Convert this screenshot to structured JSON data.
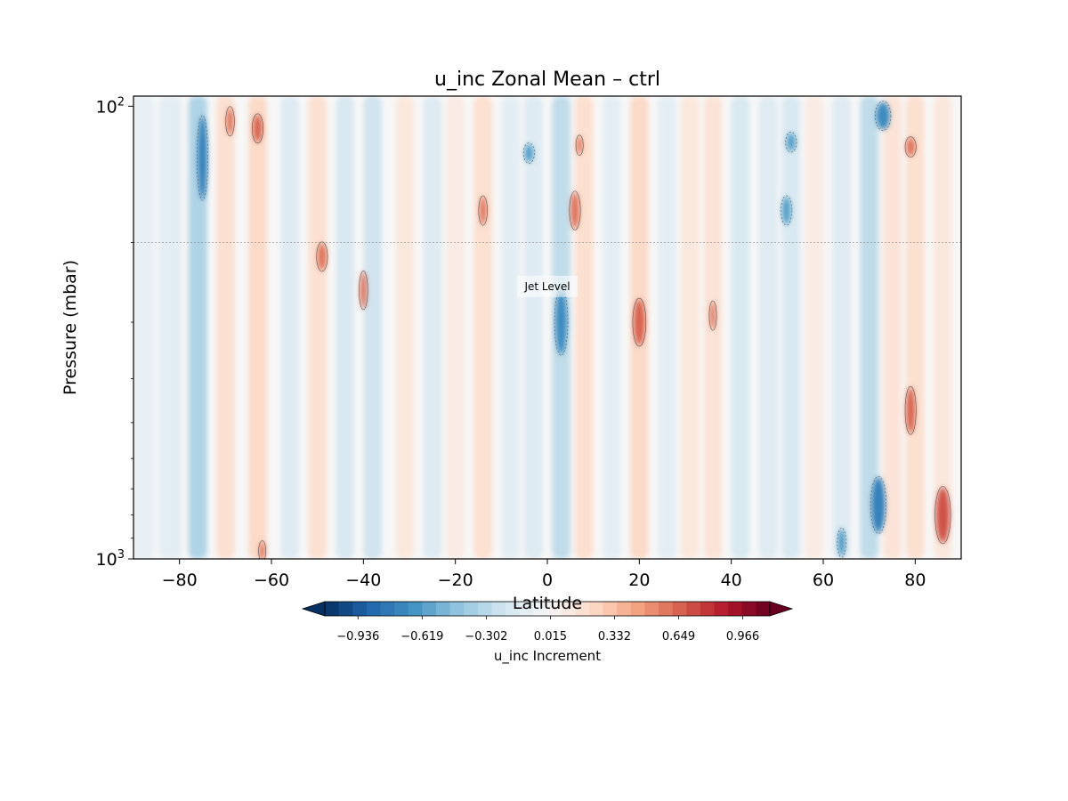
{
  "chart_data": {
    "type": "heatmap",
    "title": "u_inc Zonal Mean – ctrl",
    "xlabel": "Latitude",
    "ylabel": "Pressure (mbar)",
    "xlim": [
      -90,
      90
    ],
    "ylim": [
      1000,
      95
    ],
    "y_scale": "log",
    "grid": false,
    "x_ticks": [
      -80,
      -60,
      -40,
      -20,
      0,
      20,
      40,
      60,
      80
    ],
    "x_tick_labels": [
      "−80",
      "−60",
      "−40",
      "−20",
      "0",
      "20",
      "40",
      "60",
      "80"
    ],
    "y_tick_labels": [
      {
        "base": "10",
        "exp": "2",
        "value": 100
      },
      {
        "base": "10",
        "exp": "3",
        "value": 1000
      }
    ],
    "y_minor_ticks": [
      200,
      300,
      400,
      500,
      600,
      700,
      800,
      900
    ],
    "data_bottom_pressure": 1000,
    "data_top_pressure": 95,
    "annotation": {
      "text": "Jet Level",
      "x": 0,
      "pressure": 250
    },
    "reference_line": {
      "pressure": 200,
      "style": "dotted"
    },
    "colorbar": {
      "label": "u_inc Increment",
      "colormap": "RdBu_r",
      "vmin": -1.1,
      "vmax": 1.1,
      "extend": "both",
      "levels": 32,
      "tick_values": [
        -0.936,
        -0.619,
        -0.302,
        0.015,
        0.332,
        0.649,
        0.966
      ],
      "tick_labels": [
        "−0.936",
        "−0.619",
        "−0.302",
        "0.015",
        "0.332",
        "0.649",
        "0.966"
      ]
    },
    "bands": [
      {
        "lat": -88,
        "lat_width": 5,
        "value": -0.15
      },
      {
        "lat": -82,
        "lat_width": 5,
        "value": -0.2
      },
      {
        "lat": -76,
        "lat_width": 4,
        "value": -0.55
      },
      {
        "lat": -70,
        "lat_width": 4,
        "value": 0.3
      },
      {
        "lat": -63,
        "lat_width": 4,
        "value": 0.35
      },
      {
        "lat": -56,
        "lat_width": 4,
        "value": -0.25
      },
      {
        "lat": -50,
        "lat_width": 4,
        "value": 0.3
      },
      {
        "lat": -44,
        "lat_width": 4,
        "value": -0.3
      },
      {
        "lat": -38,
        "lat_width": 4,
        "value": -0.35
      },
      {
        "lat": -31,
        "lat_width": 4,
        "value": 0.2
      },
      {
        "lat": -25,
        "lat_width": 4,
        "value": -0.25
      },
      {
        "lat": -20,
        "lat_width": 4,
        "value": 0.15
      },
      {
        "lat": -14,
        "lat_width": 4,
        "value": 0.3
      },
      {
        "lat": -8,
        "lat_width": 4,
        "value": -0.2
      },
      {
        "lat": -3,
        "lat_width": 4,
        "value": -0.25
      },
      {
        "lat": 3,
        "lat_width": 4,
        "value": -0.45
      },
      {
        "lat": 8,
        "lat_width": 4,
        "value": 0.3
      },
      {
        "lat": 14,
        "lat_width": 4,
        "value": -0.2
      },
      {
        "lat": 20,
        "lat_width": 4,
        "value": 0.35
      },
      {
        "lat": 26,
        "lat_width": 4,
        "value": -0.2
      },
      {
        "lat": 31,
        "lat_width": 4,
        "value": 0.2
      },
      {
        "lat": 36,
        "lat_width": 4,
        "value": 0.25
      },
      {
        "lat": 42,
        "lat_width": 4,
        "value": -0.3
      },
      {
        "lat": 48,
        "lat_width": 4,
        "value": -0.25
      },
      {
        "lat": 53,
        "lat_width": 4,
        "value": -0.3
      },
      {
        "lat": 58,
        "lat_width": 4,
        "value": 0.15
      },
      {
        "lat": 64,
        "lat_width": 4,
        "value": -0.25
      },
      {
        "lat": 70,
        "lat_width": 4,
        "value": -0.45
      },
      {
        "lat": 75,
        "lat_width": 4,
        "value": 0.25
      },
      {
        "lat": 80,
        "lat_width": 4,
        "value": 0.3
      },
      {
        "lat": 86,
        "lat_width": 4,
        "value": 0.2
      }
    ],
    "blobs": [
      {
        "lat": -75,
        "pressure": 130,
        "lat_width": 2,
        "height": 0.09,
        "value": -0.75
      },
      {
        "lat": -69,
        "pressure": 108,
        "lat_width": 1.5,
        "height": 0.03,
        "value": 0.6
      },
      {
        "lat": -63,
        "pressure": 112,
        "lat_width": 2,
        "height": 0.03,
        "value": 0.65
      },
      {
        "lat": -49,
        "pressure": 215,
        "lat_width": 2,
        "height": 0.03,
        "value": 0.6
      },
      {
        "lat": -40,
        "pressure": 255,
        "lat_width": 1.5,
        "height": 0.04,
        "value": 0.6
      },
      {
        "lat": -14,
        "pressure": 170,
        "lat_width": 1.5,
        "height": 0.03,
        "value": 0.6
      },
      {
        "lat": -4,
        "pressure": 127,
        "lat_width": 2,
        "height": 0.02,
        "value": -0.6
      },
      {
        "lat": 3,
        "pressure": 300,
        "lat_width": 2.5,
        "height": 0.07,
        "value": -0.7
      },
      {
        "lat": 6,
        "pressure": 170,
        "lat_width": 2,
        "height": 0.04,
        "value": 0.6
      },
      {
        "lat": 7,
        "pressure": 122,
        "lat_width": 1.2,
        "height": 0.02,
        "value": 0.6
      },
      {
        "lat": 20,
        "pressure": 300,
        "lat_width": 2.5,
        "height": 0.05,
        "value": 0.65
      },
      {
        "lat": 36,
        "pressure": 290,
        "lat_width": 1.2,
        "height": 0.03,
        "value": 0.6
      },
      {
        "lat": 53,
        "pressure": 120,
        "lat_width": 2,
        "height": 0.02,
        "value": -0.6
      },
      {
        "lat": 52,
        "pressure": 170,
        "lat_width": 2,
        "height": 0.03,
        "value": -0.6
      },
      {
        "lat": 73,
        "pressure": 105,
        "lat_width": 3,
        "height": 0.03,
        "value": -0.7
      },
      {
        "lat": 79,
        "pressure": 123,
        "lat_width": 2,
        "height": 0.02,
        "value": 0.6
      },
      {
        "lat": 79,
        "pressure": 470,
        "lat_width": 2,
        "height": 0.05,
        "value": 0.65
      },
      {
        "lat": 72,
        "pressure": 760,
        "lat_width": 3,
        "height": 0.06,
        "value": -0.75
      },
      {
        "lat": 86,
        "pressure": 800,
        "lat_width": 3,
        "height": 0.06,
        "value": 0.7
      },
      {
        "lat": 64,
        "pressure": 920,
        "lat_width": 1.5,
        "height": 0.03,
        "value": -0.65
      },
      {
        "lat": -62,
        "pressure": 960,
        "lat_width": 1.2,
        "height": 0.02,
        "value": 0.6
      }
    ]
  }
}
